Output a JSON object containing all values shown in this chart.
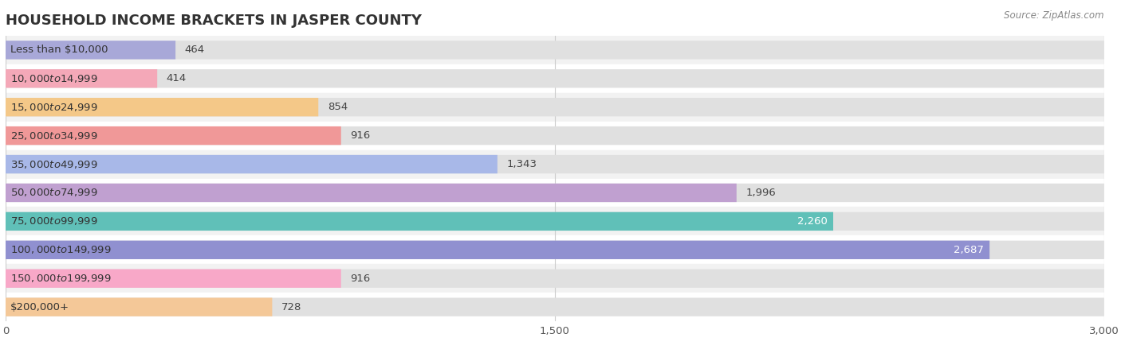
{
  "title": "HOUSEHOLD INCOME BRACKETS IN JASPER COUNTY",
  "source": "Source: ZipAtlas.com",
  "categories": [
    "Less than $10,000",
    "$10,000 to $14,999",
    "$15,000 to $24,999",
    "$25,000 to $34,999",
    "$35,000 to $49,999",
    "$50,000 to $74,999",
    "$75,000 to $99,999",
    "$100,000 to $149,999",
    "$150,000 to $199,999",
    "$200,000+"
  ],
  "values": [
    464,
    414,
    854,
    916,
    1343,
    1996,
    2260,
    2687,
    916,
    728
  ],
  "bar_colors": [
    "#a8a8d8",
    "#f4a8b8",
    "#f4c888",
    "#f09898",
    "#a8b8e8",
    "#c0a0d0",
    "#60c0b8",
    "#9090d0",
    "#f8a8c8",
    "#f4c898"
  ],
  "row_bg_even": "#f2f2f2",
  "row_bg_odd": "#ffffff",
  "bar_bg_color": "#e0e0e0",
  "xlim": [
    0,
    3000
  ],
  "xticks": [
    0,
    1500,
    3000
  ],
  "xtick_labels": [
    "0",
    "1,500",
    "3,000"
  ],
  "title_fontsize": 13,
  "label_fontsize": 9.5,
  "value_fontsize": 9.5,
  "background_color": "#ffffff",
  "value_threshold_inside": 2100
}
